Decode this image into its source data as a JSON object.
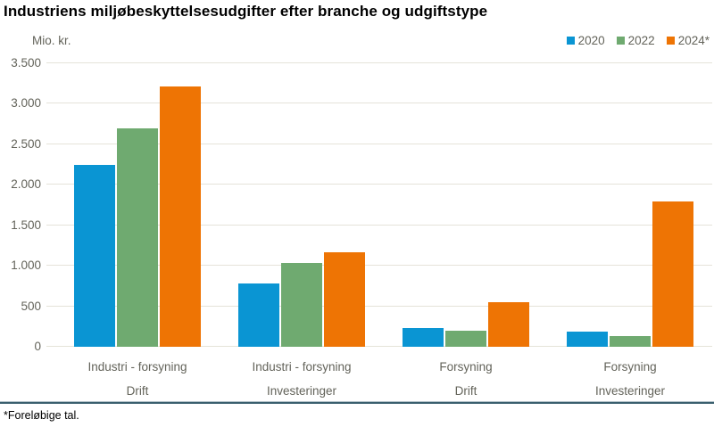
{
  "title": "Industriens miljøbeskyttelsesudgifter efter branche og udgiftstype",
  "footnote": "*Foreløbige tal.",
  "chart_data": {
    "type": "bar",
    "title": "Industriens miljøbeskyttelsesudgifter efter branche og udgiftstype",
    "xlabel": "",
    "ylabel": "Mio. kr.",
    "ylim": [
      0,
      3500
    ],
    "ytick_step": 500,
    "ytick_labels": [
      "0",
      "500",
      "1.000",
      "1.500",
      "2.000",
      "2.500",
      "3.000",
      "3.500"
    ],
    "grid": true,
    "legend_position": "top-right",
    "categories": [
      {
        "line1": "Industri - forsyning",
        "line2": "Drift"
      },
      {
        "line1": "Industri - forsyning",
        "line2": "Investeringer"
      },
      {
        "line1": "Forsyning",
        "line2": "Drift"
      },
      {
        "line1": "Forsyning",
        "line2": "Investeringer"
      }
    ],
    "series": [
      {
        "name": "2020",
        "color": "#0a95d3",
        "values": [
          2240,
          785,
          230,
          190
        ]
      },
      {
        "name": "2022",
        "color": "#6faa70",
        "values": [
          2700,
          1030,
          200,
          130
        ]
      },
      {
        "name": "2024*",
        "color": "#ee7404",
        "values": [
          3215,
          1170,
          545,
          1790
        ]
      }
    ],
    "colors": {
      "grid": "#e5e3d9",
      "axis_text": "#63635a",
      "footer_rule": "#3a5f6e"
    }
  }
}
